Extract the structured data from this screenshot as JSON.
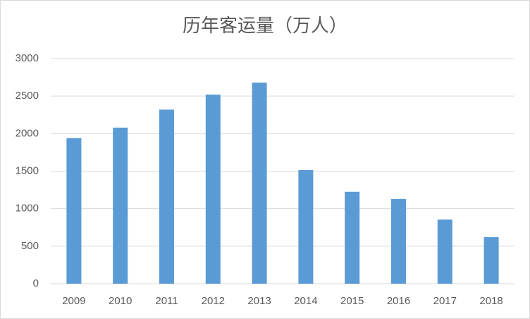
{
  "chart_data": {
    "type": "bar",
    "title": "历年客运量（万人）",
    "categories": [
      "2009",
      "2010",
      "2011",
      "2012",
      "2013",
      "2014",
      "2015",
      "2016",
      "2017",
      "2018"
    ],
    "values": [
      1940,
      2080,
      2320,
      2520,
      2680,
      1515,
      1225,
      1130,
      855,
      620
    ],
    "color": "#5b9bd5",
    "ylim": [
      0,
      3000
    ],
    "yticks": [
      0,
      500,
      1000,
      1500,
      2000,
      2500,
      3000
    ],
    "grid": true
  }
}
